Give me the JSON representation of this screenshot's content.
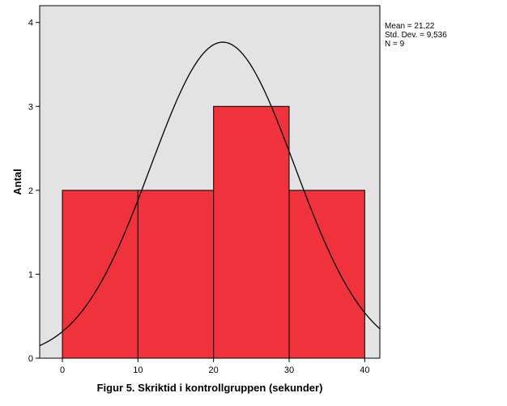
{
  "chart_data": {
    "type": "histogram",
    "xlabel": "Figur 5. Skriktid i kontrollgruppen (sekunder)",
    "ylabel": "Antal",
    "xlim": [
      -3,
      42
    ],
    "ylim": [
      0,
      4.2
    ],
    "x_ticks": [
      0,
      10,
      20,
      30,
      40
    ],
    "y_ticks": [
      0,
      1,
      2,
      3,
      4
    ],
    "bins": [
      {
        "start": 0,
        "end": 10,
        "count": 2
      },
      {
        "start": 10,
        "end": 20,
        "count": 2
      },
      {
        "start": 20,
        "end": 30,
        "count": 3
      },
      {
        "start": 30,
        "end": 40,
        "count": 2
      }
    ],
    "normal_curve": {
      "mean": 21.22,
      "std_dev": 9.536,
      "n": 9,
      "bin_width": 10
    },
    "stats": {
      "mean_label": "Mean = 21,22",
      "std_label": "Std. Dev. = 9,536",
      "n_label": "N = 9"
    },
    "colors": {
      "bar_fill": "#f0323c",
      "plot_background": "#e3e3e3",
      "curve": "#000000"
    }
  }
}
